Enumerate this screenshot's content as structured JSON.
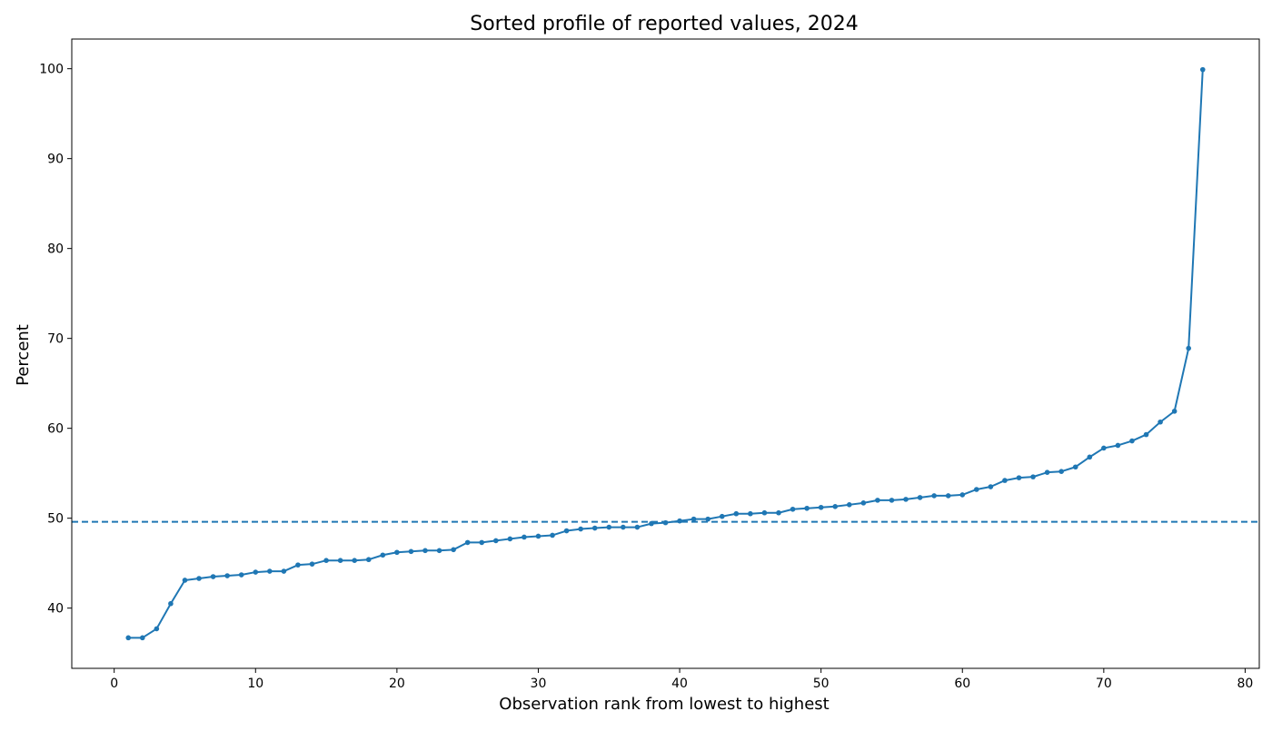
{
  "chart_data": {
    "type": "line",
    "title": "Sorted profile of reported values, 2024",
    "xlabel": "Observation rank from lowest to highest",
    "ylabel": "Percent",
    "xlim": [
      -3,
      81
    ],
    "ylim": [
      33.3,
      103.3
    ],
    "xticks": [
      0,
      10,
      20,
      30,
      40,
      50,
      60,
      70,
      80
    ],
    "yticks": [
      40,
      50,
      60,
      70,
      80,
      90,
      100
    ],
    "grid": false,
    "line_color": "#1f77b4",
    "reference_line": {
      "y": 49.6,
      "style": "dashed",
      "color": "#1f77b4"
    },
    "series": [
      {
        "x": [
          1,
          2,
          3,
          4,
          5,
          6,
          7,
          8,
          9,
          10,
          11,
          12,
          13,
          14,
          15,
          16,
          17,
          18,
          19,
          20,
          21,
          22,
          23,
          24,
          25,
          26,
          27,
          28,
          29,
          30,
          31,
          32,
          33,
          34,
          35,
          36,
          37,
          38,
          39,
          40,
          41,
          42,
          43,
          44,
          45,
          46,
          47,
          48,
          49,
          50,
          51,
          52,
          53,
          54,
          55,
          56,
          57,
          58,
          59,
          60,
          61,
          62,
          63,
          64,
          65,
          66,
          67,
          68,
          69,
          70,
          71,
          72,
          73,
          74,
          75,
          76,
          77
        ],
        "values": [
          36.7,
          36.7,
          37.7,
          40.5,
          43.1,
          43.3,
          43.5,
          43.6,
          43.7,
          44.0,
          44.1,
          44.1,
          44.8,
          44.9,
          45.3,
          45.3,
          45.3,
          45.4,
          45.9,
          46.2,
          46.3,
          46.4,
          46.4,
          46.5,
          47.3,
          47.3,
          47.5,
          47.7,
          47.9,
          48.0,
          48.1,
          48.6,
          48.8,
          48.9,
          49.0,
          49.0,
          49.0,
          49.4,
          49.5,
          49.7,
          49.9,
          49.9,
          50.2,
          50.5,
          50.5,
          50.6,
          50.6,
          51.0,
          51.1,
          51.2,
          51.3,
          51.5,
          51.7,
          52.0,
          52.0,
          52.1,
          52.3,
          52.5,
          52.5,
          52.6,
          53.2,
          53.5,
          54.2,
          54.5,
          54.6,
          55.1,
          55.2,
          55.7,
          56.8,
          57.8,
          58.1,
          58.6,
          59.3,
          60.7,
          61.9,
          68.9,
          99.9
        ]
      }
    ]
  }
}
